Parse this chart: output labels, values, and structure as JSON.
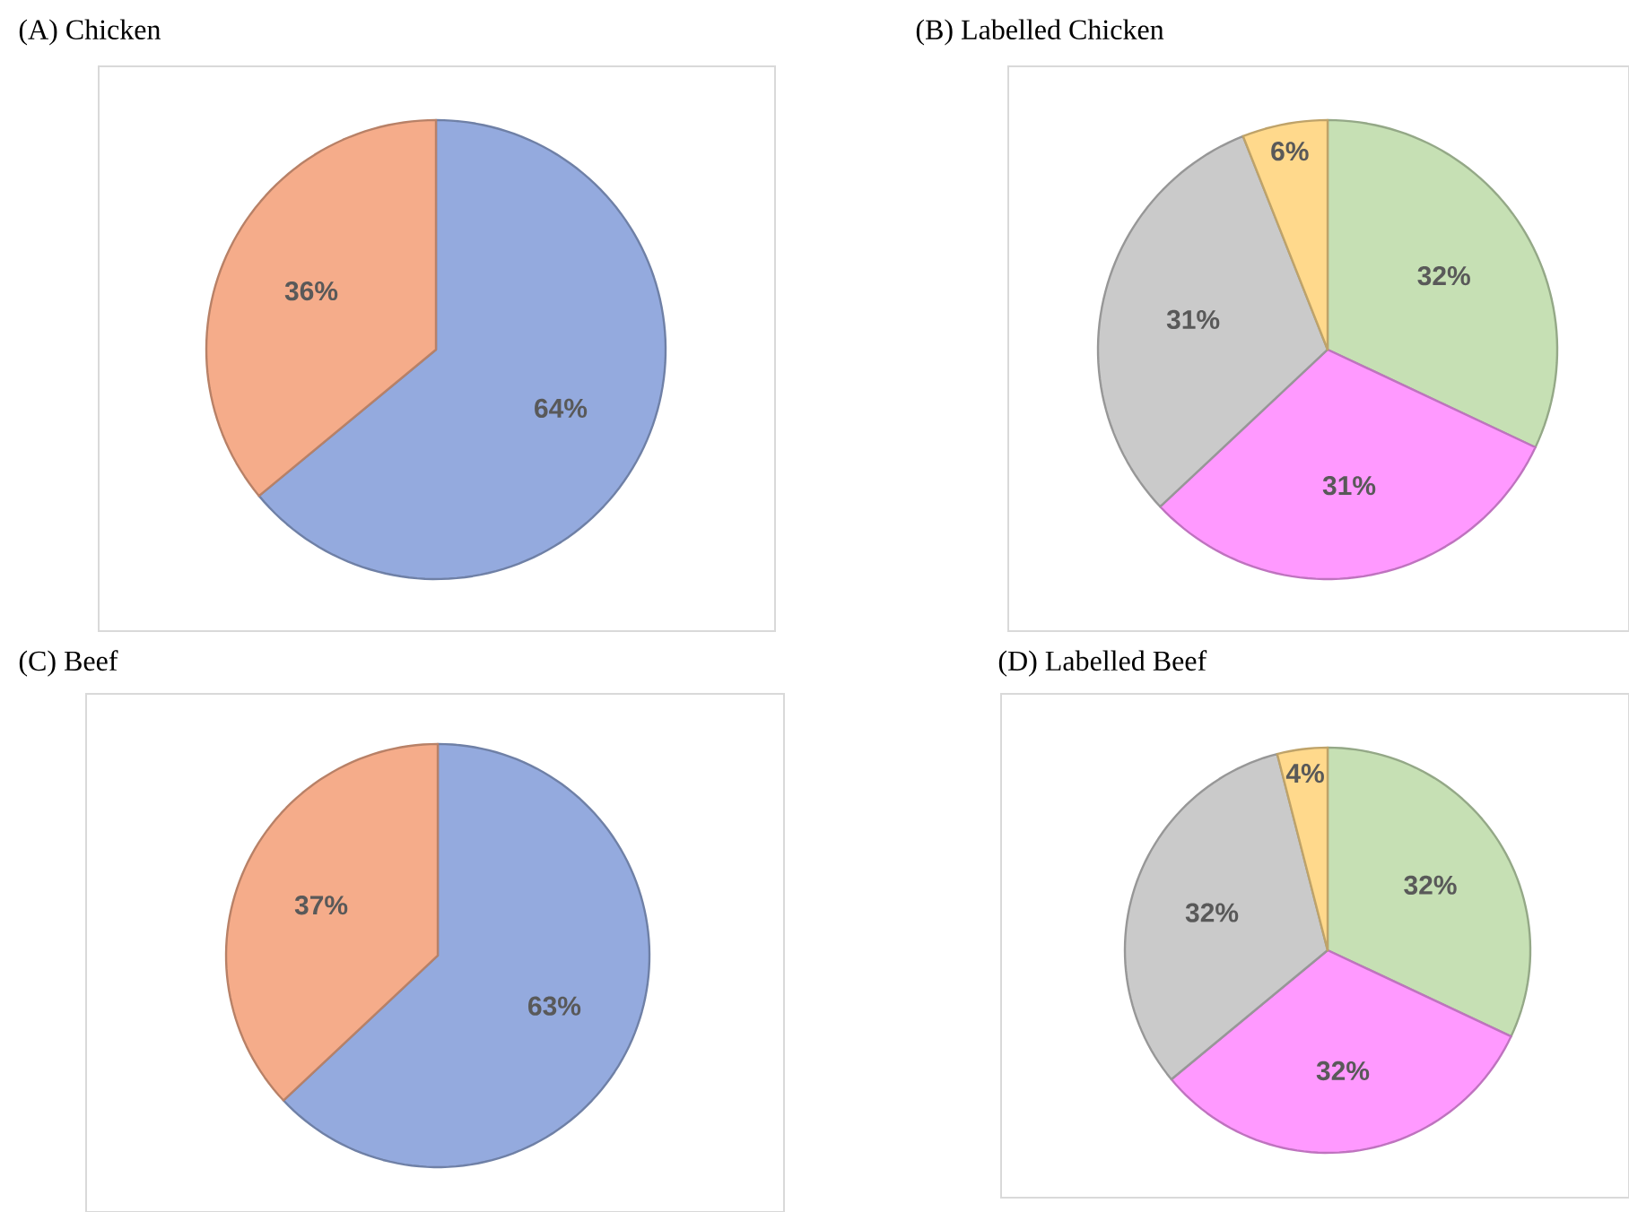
{
  "chart_data": [
    {
      "type": "pie",
      "title": "(A) Chicken",
      "categories": [
        null,
        null
      ],
      "values": [
        64,
        36
      ],
      "colors": [
        "#94aade",
        "#f5ac8a"
      ],
      "value_labels": [
        "64%",
        "36%"
      ]
    },
    {
      "type": "pie",
      "title": "(B) Labelled Chicken",
      "categories": [
        null,
        null,
        null,
        null
      ],
      "values": [
        32,
        31,
        31,
        6
      ],
      "colors": [
        "#c6e0b4",
        "#ff99ff",
        "#cacaca",
        "#ffd98c"
      ],
      "value_labels": [
        "32%",
        "31%",
        "31%",
        "6%"
      ]
    },
    {
      "type": "pie",
      "title": "(C) Beef",
      "categories": [
        null,
        null
      ],
      "values": [
        63,
        37
      ],
      "colors": [
        "#94aade",
        "#f5ac8a"
      ],
      "value_labels": [
        "63%",
        "37%"
      ]
    },
    {
      "type": "pie",
      "title": "(D) Labelled Beef",
      "categories": [
        null,
        null,
        null,
        null
      ],
      "values": [
        32,
        32,
        32,
        4
      ],
      "colors": [
        "#c6e0b4",
        "#ff99ff",
        "#cacaca",
        "#ffd98c"
      ],
      "value_labels": [
        "32%",
        "32%",
        "32%",
        "4%"
      ]
    }
  ]
}
